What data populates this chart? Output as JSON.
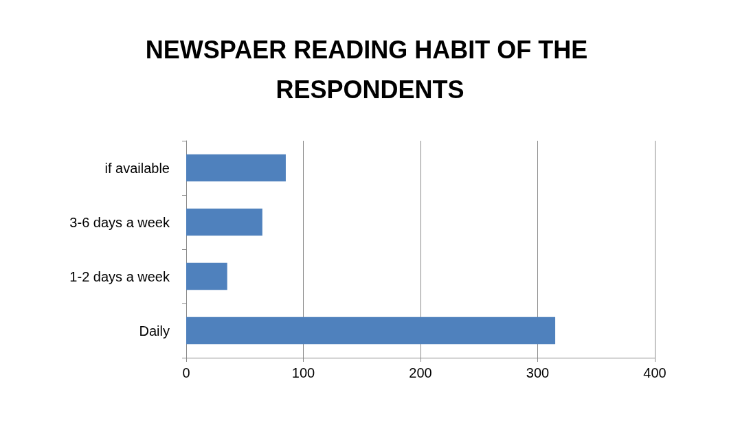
{
  "chart_data": {
    "type": "bar",
    "orientation": "horizontal",
    "title": "NEWSPAER READING HABIT OF THE RESPONDENTS",
    "categories": [
      "if available",
      "3-6 days a week",
      "1-2 days a week",
      "Daily"
    ],
    "values": [
      85,
      65,
      35,
      315
    ],
    "color": "#4f81bd",
    "xlim": [
      0,
      400
    ],
    "xticks": [
      0,
      100,
      200,
      300,
      400
    ],
    "grid": "x"
  }
}
